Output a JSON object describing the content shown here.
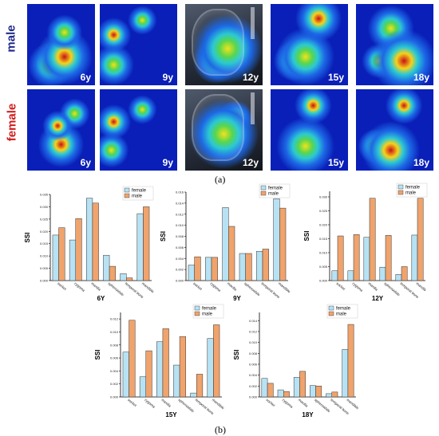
{
  "rows": [
    {
      "label": "male",
      "color": "#1f2a8a",
      "ages": [
        "6y",
        "9y",
        "12y",
        "15y",
        "18y"
      ]
    },
    {
      "label": "female",
      "color": "#d01c1c",
      "ages": [
        "6y",
        "9y",
        "12y",
        "15y",
        "18y"
      ]
    }
  ],
  "captions": {
    "a": "(a)",
    "b": "(b)"
  },
  "colors": {
    "female": "#b7e2f3",
    "male": "#f0a36c",
    "heat_bg": "#0a1fb8"
  },
  "chart_data": [
    {
      "type": "bar",
      "title": "6Y",
      "ylabel": "SSI",
      "categories": [
        "socket",
        "zygoma",
        "maxilla",
        "sphenoidale",
        "temporal bone",
        "mandible"
      ],
      "ylim": [
        0,
        0.035
      ],
      "yticks": [
        "0.000",
        "0.005",
        "0.010",
        "0.015",
        "0.020",
        "0.025",
        "0.030",
        "0.035"
      ],
      "legend": "top-right",
      "series": [
        {
          "name": "female",
          "values": [
            0.0185,
            0.0165,
            0.0335,
            0.0103,
            0.0028,
            0.0272
          ]
        },
        {
          "name": "male",
          "values": [
            0.0215,
            0.0252,
            0.0315,
            0.0058,
            0.0011,
            0.03
          ]
        }
      ]
    },
    {
      "type": "bar",
      "title": "9Y",
      "ylabel": "SSI",
      "categories": [
        "socket",
        "zygoma",
        "maxilla",
        "sphenoidale",
        "temporal bone",
        "mandible"
      ],
      "ylim": [
        0,
        0.016
      ],
      "yticks": [
        "0.000",
        "0.002",
        "0.004",
        "0.006",
        "0.008",
        "0.010",
        "0.012",
        "0.014",
        "0.016"
      ],
      "legend": "top-right",
      "series": [
        {
          "name": "female",
          "values": [
            0.0028,
            0.0042,
            0.0132,
            0.0049,
            0.0053,
            0.0148
          ]
        },
        {
          "name": "male",
          "values": [
            0.0043,
            0.0042,
            0.0098,
            0.0049,
            0.0057,
            0.0131
          ]
        }
      ]
    },
    {
      "type": "bar",
      "title": "12Y",
      "ylabel": "SSI",
      "categories": [
        "socket",
        "zygoma",
        "maxilla",
        "sphenoidale",
        "temporal bone",
        "mandib"
      ],
      "ylim": [
        0,
        0.032
      ],
      "yticks": [
        "0.000",
        "0.005",
        "0.010",
        "0.015",
        "0.020",
        "0.025",
        "0.030"
      ],
      "legend": "top-right",
      "series": [
        {
          "name": "female",
          "values": [
            0.0035,
            0.0035,
            0.0155,
            0.0048,
            0.0022,
            0.0163
          ]
        },
        {
          "name": "male",
          "values": [
            0.016,
            0.0165,
            0.0295,
            0.0162,
            0.005,
            0.0295
          ]
        }
      ]
    },
    {
      "type": "bar",
      "title": "15Y",
      "ylabel": "SSI",
      "categories": [
        "socket",
        "zygoma",
        "maxilla",
        "sphenoidale",
        "temporal bone",
        "mandible"
      ],
      "ylim": [
        0,
        0.013
      ],
      "yticks": [
        "0.000",
        "0.002",
        "0.004",
        "0.006",
        "0.008",
        "0.010",
        "0.012"
      ],
      "legend": "top-right",
      "series": [
        {
          "name": "female",
          "values": [
            0.0069,
            0.0031,
            0.0085,
            0.0049,
            0.0006,
            0.009
          ]
        },
        {
          "name": "male",
          "values": [
            0.0118,
            0.0071,
            0.0105,
            0.0093,
            0.0035,
            0.0111
          ]
        }
      ]
    },
    {
      "type": "bar",
      "title": "18Y",
      "ylabel": "SSI",
      "categories": [
        "socket",
        "zygoma",
        "maxilla",
        "sphenoidale",
        "temporal bone",
        "mandible"
      ],
      "ylim": [
        0,
        0.0155
      ],
      "yticks": [
        "0.000",
        "0.002",
        "0.004",
        "0.006",
        "0.008",
        "0.010",
        "0.012",
        "0.014"
      ],
      "legend": "top-right",
      "series": [
        {
          "name": "female",
          "values": [
            0.0034,
            0.0013,
            0.0036,
            0.0021,
            0.0006,
            0.0087
          ]
        },
        {
          "name": "male",
          "values": [
            0.0025,
            0.001,
            0.0047,
            0.002,
            0.0009,
            0.0133
          ]
        }
      ]
    }
  ]
}
